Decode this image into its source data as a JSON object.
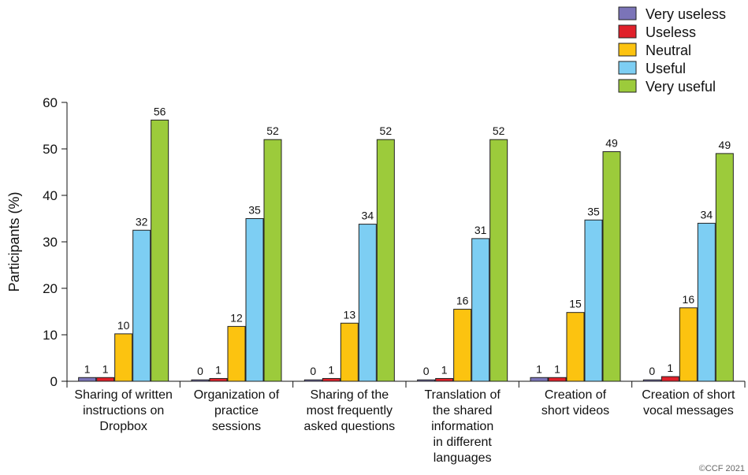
{
  "chart_data": {
    "type": "bar",
    "ylabel": "Participants (%)",
    "xlabel": "",
    "ylim": [
      0,
      60
    ],
    "yticks": [
      0,
      10,
      20,
      30,
      40,
      50,
      60
    ],
    "grid": false,
    "legend_position": "top-right",
    "categories": [
      [
        "Sharing of written",
        "instructions on",
        "Dropbox"
      ],
      [
        "Organization of",
        "practice",
        "sessions"
      ],
      [
        "Sharing of the",
        "most frequently",
        "asked questions"
      ],
      [
        "Translation of",
        "the shared",
        "information",
        "in different",
        "languages"
      ],
      [
        "Creation of",
        "short videos"
      ],
      [
        "Creation of short",
        "vocal messages"
      ]
    ],
    "series": [
      {
        "name": "Very useless",
        "color": "#7b74b8",
        "values": [
          0.8,
          0.3,
          0.3,
          0.3,
          0.8,
          0.3
        ],
        "labels": [
          "1",
          "0",
          "0",
          "0",
          "1",
          "0"
        ]
      },
      {
        "name": "Useless",
        "color": "#e0202a",
        "values": [
          0.8,
          0.6,
          0.6,
          0.6,
          0.8,
          1.0
        ],
        "labels": [
          "1",
          "1",
          "1",
          "1",
          "1",
          "1"
        ]
      },
      {
        "name": "Neutral",
        "color": "#fcc310",
        "values": [
          10.2,
          11.8,
          12.5,
          15.5,
          14.8,
          15.8
        ],
        "labels": [
          "10",
          "12",
          "13",
          "16",
          "15",
          "16"
        ]
      },
      {
        "name": "Useful",
        "color": "#7dcef3",
        "values": [
          32.5,
          35.0,
          33.8,
          30.7,
          34.7,
          34.0
        ],
        "labels": [
          "32",
          "35",
          "34",
          "31",
          "35",
          "34"
        ]
      },
      {
        "name": "Very useful",
        "color": "#9ccb3b",
        "values": [
          56.2,
          52.0,
          52.0,
          52.0,
          49.4,
          49.0
        ],
        "labels": [
          "56",
          "52",
          "52",
          "52",
          "49",
          "49"
        ]
      }
    ]
  },
  "copyright": "©CCF 2021"
}
